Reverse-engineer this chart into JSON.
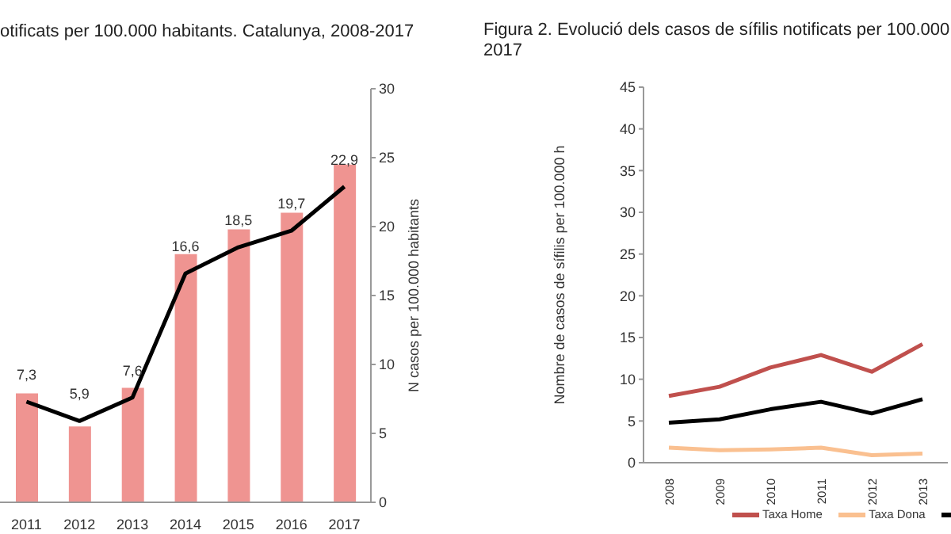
{
  "chart_data": [
    {
      "type": "bar",
      "title": "otificats per 100.000 habitants. Catalunya, 2008-2017",
      "ylabel": "N casos per 100.000 habitants",
      "categories": [
        "2011",
        "2012",
        "2013",
        "2014",
        "2015",
        "2016",
        "2017"
      ],
      "series": [
        {
          "color": "#ef9491",
          "values": [
            7.9,
            5.5,
            8.3,
            18.0,
            19.8,
            21.0,
            24.5
          ]
        },
        {
          "type": "line",
          "color": "#000000",
          "values": [
            7.3,
            5.9,
            7.6,
            16.6,
            18.5,
            19.7,
            22.9
          ],
          "value_labels": [
            "7,3",
            "5,9",
            "7,6",
            "16,6",
            "18,5",
            "19,7",
            "22,9"
          ]
        }
      ],
      "ylim": [
        0,
        30
      ],
      "yticks": [
        0,
        5,
        10,
        15,
        20,
        25,
        30
      ],
      "grid": false,
      "legend": false,
      "marker": "none"
    },
    {
      "type": "line",
      "title": "Figura 2. Evolució dels casos de sífilis notificats per 100.000\n2017",
      "ylabel": "Nombre de casos de sífilis per 100.000 h",
      "categories": [
        "2008",
        "2009",
        "2010",
        "2011",
        "2012",
        "2013"
      ],
      "series": [
        {
          "name": "Taxa Home",
          "color": "#c0504d",
          "values": [
            8.0,
            9.1,
            11.4,
            12.9,
            10.9,
            14.2
          ]
        },
        {
          "name": "Taxa Dona",
          "color": "#fac090",
          "values": [
            1.8,
            1.5,
            1.6,
            1.8,
            0.9,
            1.1
          ]
        },
        {
          "color": "#000000",
          "values": [
            4.8,
            5.2,
            6.4,
            7.3,
            5.9,
            7.6
          ]
        }
      ],
      "ylim": [
        0,
        45
      ],
      "yticks": [
        0,
        5,
        10,
        15,
        20,
        25,
        30,
        35,
        40,
        45
      ],
      "grid": false,
      "legend": "bottom",
      "marker": "none"
    }
  ]
}
